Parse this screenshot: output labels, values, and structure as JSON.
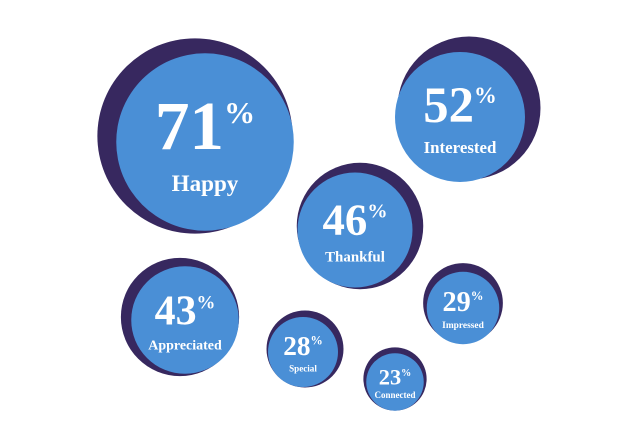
{
  "chart_data": {
    "type": "bubble",
    "categories": [
      "Happy",
      "Interested",
      "Thankful",
      "Appreciated",
      "Impressed",
      "Special",
      "Connected"
    ],
    "values": [
      71,
      52,
      46,
      43,
      29,
      28,
      23
    ],
    "value_labels": [
      "71%",
      "52%",
      "46%",
      "43%",
      "29%",
      "28%",
      "23%"
    ],
    "color": "#4a8fd6",
    "shadow_color": "#37285f"
  }
}
